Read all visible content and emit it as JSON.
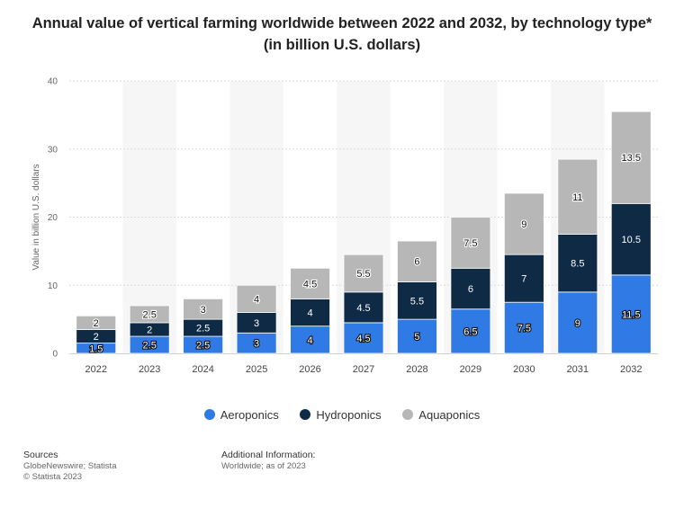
{
  "chart_data": {
    "type": "bar",
    "stacked": true,
    "title": "Annual value of vertical farming worldwide between 2022 and 2032, by technology type* (in billion U.S. dollars)",
    "xlabel": "",
    "ylabel": "Value in billion U.S. dollars",
    "ylim": [
      0,
      40
    ],
    "yticks": [
      0,
      10,
      20,
      30,
      40
    ],
    "grid": true,
    "legend_position": "bottom",
    "categories": [
      "2022",
      "2023",
      "2024",
      "2025",
      "2026",
      "2027",
      "2028",
      "2029",
      "2030",
      "2031",
      "2032"
    ],
    "series": [
      {
        "name": "Aeroponics",
        "color": "#2f7ae5",
        "values": [
          1.5,
          2.5,
          2.5,
          3,
          4,
          4.5,
          5,
          6.5,
          7.5,
          9,
          11.5
        ],
        "labels": [
          "1.5",
          "2.5",
          "2.5",
          "3",
          "4",
          "4.5",
          "5",
          "6.5",
          "7.5",
          "9",
          "11.5"
        ]
      },
      {
        "name": "Hydroponics",
        "color": "#0f2a45",
        "values": [
          2,
          2,
          2.5,
          3,
          4,
          4.5,
          5.5,
          6,
          7,
          8.5,
          10.5
        ],
        "labels": [
          "2",
          "2",
          "2.5",
          "3",
          "4",
          "4.5",
          "5.5",
          "6",
          "7",
          "8.5",
          "10.5"
        ]
      },
      {
        "name": "Aquaponics",
        "color": "#b7b7b7",
        "values": [
          2,
          2.5,
          3,
          4,
          4.5,
          5.5,
          6,
          7.5,
          9,
          11,
          13.5
        ],
        "labels": [
          "2",
          "2.5",
          "3",
          "4",
          "4.5",
          "5.5",
          "6",
          "7.5",
          "9",
          "11",
          "13.5"
        ]
      }
    ]
  },
  "footer": {
    "sources_heading": "Sources",
    "sources_line1": "GlobeNewswire; Statista",
    "sources_line2": "© Statista 2023",
    "additional_heading": "Additional Information:",
    "additional_line1": "Worldwide; as of 2023"
  }
}
